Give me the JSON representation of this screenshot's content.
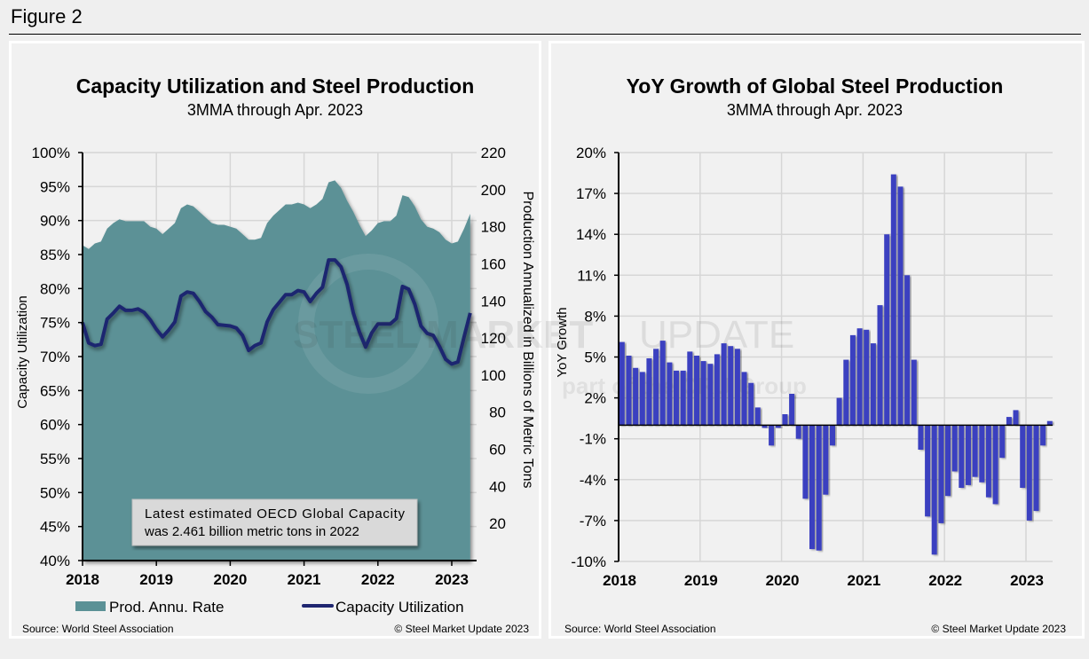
{
  "figure_label": "Figure 2",
  "colors": {
    "production_area": "#5b9196",
    "utilization_line": "#1f2670",
    "growth_bars": "#3a40c0",
    "grid": "#d6d6d6",
    "panel": "#f1f1f1"
  },
  "watermark": {
    "line1a": "STEEL",
    "line1b": "MARKET",
    "line1c": "UPDATE",
    "line2": "part of the CRU Group"
  },
  "chart_data": [
    {
      "type": "area+line",
      "title": "Capacity Utilization and Steel Production",
      "subtitle": "3MMA through Apr. 2023",
      "ylabel": "Capacity Utilization",
      "y2label": "Production Annualized in Billions of Metric Tons",
      "ylim": [
        40,
        100
      ],
      "y2lim": [
        0,
        220
      ],
      "yticks": [
        "100%",
        "95%",
        "90%",
        "85%",
        "80%",
        "75%",
        "70%",
        "65%",
        "60%",
        "55%",
        "50%",
        "45%",
        "40%"
      ],
      "y2ticks": [
        "220",
        "200",
        "180",
        "160",
        "140",
        "120",
        "100",
        "80",
        "60",
        "40",
        "20"
      ],
      "xticks": [
        "2018",
        "2019",
        "2020",
        "2021",
        "2022",
        "2023"
      ],
      "grid": true,
      "legend": {
        "position": "bottom",
        "entries": [
          "Prod. Annu. Rate",
          "Capacity Utilization"
        ]
      },
      "annotation": [
        "Latest estimated OECD Global Capacity",
        "was 2.461 billion metric tons in 2022"
      ],
      "x_start": "Jan 2018",
      "x_end": "Apr 2023",
      "series": [
        {
          "name": "Prod. Annu. Rate",
          "axis": "right",
          "values": [
            170,
            168,
            171,
            172,
            179,
            182,
            184,
            183,
            183,
            183,
            183,
            180,
            179,
            176,
            179,
            182,
            190,
            192,
            191,
            188,
            185,
            182,
            181,
            181,
            180,
            179,
            176,
            173,
            173,
            174,
            182,
            186,
            189,
            192,
            192,
            193,
            192,
            190,
            192,
            195,
            204,
            205,
            201,
            194,
            188,
            181,
            175,
            178,
            182,
            183,
            183,
            186,
            197,
            196,
            191,
            184,
            180,
            179,
            177,
            173,
            171,
            172,
            179,
            187
          ]
        },
        {
          "name": "Capacity Utilization",
          "axis": "left",
          "values": [
            75.0,
            72.0,
            71.6,
            71.8,
            75.5,
            76.4,
            77.4,
            76.8,
            76.8,
            77.0,
            76.5,
            75.4,
            74.0,
            72.9,
            73.9,
            75.1,
            78.9,
            79.5,
            79.3,
            78.1,
            76.6,
            75.8,
            74.7,
            74.6,
            74.5,
            74.2,
            73.1,
            70.9,
            71.6,
            72.0,
            75.1,
            76.9,
            78.0,
            79.1,
            79.1,
            79.7,
            79.5,
            78.1,
            79.3,
            80.2,
            84.2,
            84.2,
            83.2,
            80.6,
            76.4,
            73.6,
            71.4,
            73.5,
            74.8,
            74.8,
            74.8,
            75.6,
            80.3,
            79.9,
            77.7,
            74.5,
            73.4,
            73.1,
            71.5,
            69.6,
            68.9,
            69.2,
            72.9,
            76.4
          ]
        }
      ],
      "source": "Source: World Steel Association",
      "copyright": "© Steel Market Update 2023"
    },
    {
      "type": "bar",
      "title": "YoY Growth of Global Steel Production",
      "subtitle": "3MMA through Apr. 2023",
      "ylabel": "YoY Growth",
      "ylim": [
        -10,
        20
      ],
      "yticks": [
        "20%",
        "17%",
        "14%",
        "11%",
        "8%",
        "5%",
        "2%",
        "-1%",
        "-4%",
        "-7%",
        "-10%"
      ],
      "xticks": [
        "2018",
        "2019",
        "2020",
        "2021",
        "2022",
        "2023"
      ],
      "grid": true,
      "x_start": "Jan 2018",
      "x_end": "Apr 2023",
      "values": [
        6.1,
        5.1,
        4.2,
        3.9,
        4.9,
        5.6,
        6.2,
        4.6,
        4.0,
        4.0,
        5.4,
        5.1,
        4.7,
        4.5,
        5.2,
        6.0,
        5.8,
        5.6,
        3.9,
        3.1,
        1.3,
        -0.2,
        -1.5,
        -0.2,
        0.8,
        2.3,
        -1.0,
        -5.4,
        -9.1,
        -9.2,
        -5.1,
        -1.5,
        2.0,
        4.8,
        6.6,
        7.1,
        7.0,
        6.0,
        8.8,
        14.0,
        18.4,
        17.5,
        11.0,
        4.8,
        -1.8,
        -6.7,
        -9.5,
        -7.2,
        -5.2,
        -3.4,
        -4.6,
        -4.4,
        -3.8,
        -4.2,
        -5.3,
        -5.8,
        -2.4,
        0.6,
        1.1,
        -4.6,
        -7.0,
        -6.3,
        -1.5,
        0.3
      ],
      "source": "Source: World Steel Association",
      "copyright": "© Steel Market Update 2023"
    }
  ]
}
